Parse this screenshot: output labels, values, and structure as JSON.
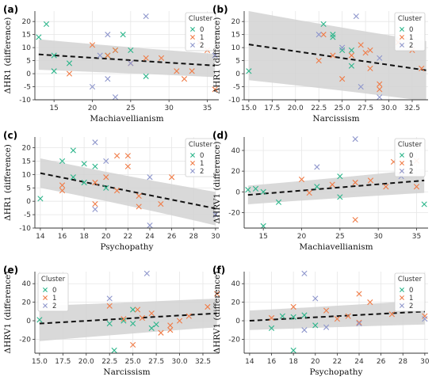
{
  "colors": {
    "cluster_0": "#2bb58a",
    "cluster_1": "#f07b46",
    "cluster_2": "#8e96cc",
    "ci_band": "#d2d2d2",
    "regression_line": "#111111",
    "axis": "#333333",
    "grid": "#e6e6e6"
  },
  "chart_data": [
    {
      "panel_label": "(a)",
      "type": "scatter",
      "xlabel": "Machiavellianism",
      "ylabel": "ΔHR1 (difference)",
      "xlim": [
        12.5,
        36.5
      ],
      "ylim": [
        -10,
        24
      ],
      "xticks": [
        15,
        20,
        25,
        30,
        35
      ],
      "yticks": [
        -10,
        -5,
        0,
        5,
        10,
        15,
        20
      ],
      "legend": {
        "title": "Cluster",
        "entries": [
          "0",
          "1",
          "2"
        ],
        "position": "top-right"
      },
      "regression": {
        "x": [
          13,
          36
        ],
        "y": [
          7.4,
          3.1
        ],
        "ci_lower": [
          1.5,
          -1.3
        ],
        "ci_upper": [
          13.2,
          7.6
        ]
      },
      "series": [
        {
          "name": "0",
          "points": [
            [
              13,
              14
            ],
            [
              14,
              19
            ],
            [
              15,
              1
            ],
            [
              15,
              7
            ],
            [
              17,
              4
            ],
            [
              22,
              7
            ],
            [
              23,
              9
            ],
            [
              24,
              15
            ],
            [
              25,
              9
            ],
            [
              27,
              -1
            ]
          ]
        },
        {
          "name": "1",
          "points": [
            [
              17,
              0
            ],
            [
              20,
              11
            ],
            [
              22,
              7
            ],
            [
              23,
              9
            ],
            [
              25,
              4
            ],
            [
              27,
              6
            ],
            [
              29,
              6
            ],
            [
              31,
              1
            ],
            [
              32,
              -2
            ],
            [
              33,
              1
            ],
            [
              34,
              12
            ],
            [
              35,
              9
            ],
            [
              36,
              -6
            ]
          ]
        },
        {
          "name": "2",
          "points": [
            [
              20,
              -5
            ],
            [
              21,
              7
            ],
            [
              22,
              -2
            ],
            [
              22,
              15
            ],
            [
              23,
              -9
            ],
            [
              25,
              4
            ],
            [
              27,
              22
            ],
            [
              36,
              7
            ]
          ]
        }
      ]
    },
    {
      "panel_label": "(b)",
      "type": "scatter",
      "xlabel": "Narcissism",
      "ylabel": "ΔHR1 (difference)",
      "xlim": [
        14.5,
        34.2
      ],
      "ylim": [
        -10,
        24
      ],
      "xticks": [
        15.0,
        17.5,
        20.0,
        22.5,
        25.0,
        27.5,
        30.0,
        32.5
      ],
      "xtick_labels": [
        "15.0",
        "17.5",
        "20.0",
        "22.5",
        "25.0",
        "27.5",
        "30.0",
        "32.5"
      ],
      "yticks": [
        -10,
        -5,
        0,
        5,
        10,
        15,
        20
      ],
      "legend": {
        "title": "Cluster",
        "entries": [
          "0",
          "1",
          "2"
        ],
        "position": "top-right"
      },
      "regression": {
        "x": [
          15,
          34
        ],
        "y": [
          11.2,
          1.3
        ],
        "ci_lower": [
          -2.5,
          -10.5
        ],
        "ci_upper": [
          24,
          12.5
        ]
      },
      "series": [
        {
          "name": "0",
          "points": [
            [
              15,
              1
            ],
            [
              23,
              19
            ],
            [
              24,
              14
            ],
            [
              24,
              15
            ],
            [
              25,
              9
            ],
            [
              26,
              9
            ],
            [
              26,
              3
            ]
          ]
        },
        {
          "name": "1",
          "points": [
            [
              22.5,
              5
            ],
            [
              23,
              15
            ],
            [
              24,
              7
            ],
            [
              25,
              -2
            ],
            [
              26,
              7
            ],
            [
              27,
              11
            ],
            [
              27.5,
              8
            ],
            [
              28,
              9
            ],
            [
              28,
              2
            ],
            [
              29,
              -6
            ],
            [
              29,
              -4
            ],
            [
              31,
              12
            ],
            [
              32.5,
              9
            ],
            [
              33.5,
              2
            ]
          ]
        },
        {
          "name": "2",
          "points": [
            [
              22.5,
              15
            ],
            [
              25,
              10
            ],
            [
              26.5,
              22
            ],
            [
              27,
              -5
            ],
            [
              29,
              6
            ],
            [
              29,
              -9
            ]
          ]
        }
      ]
    },
    {
      "panel_label": "(c)",
      "type": "scatter",
      "xlabel": "Psychopathy",
      "ylabel": "ΔHR1 (difference)",
      "xlim": [
        13.5,
        30.3
      ],
      "ylim": [
        -10,
        24
      ],
      "xticks": [
        14,
        16,
        18,
        20,
        22,
        24,
        26,
        28,
        30
      ],
      "yticks": [
        -10,
        -5,
        0,
        5,
        10,
        15,
        20
      ],
      "legend": {
        "title": "Cluster",
        "entries": [
          "0",
          "1",
          "2"
        ],
        "position": "top-right"
      },
      "regression": {
        "x": [
          14,
          30
        ],
        "y": [
          10.5,
          -2.7
        ],
        "ci_lower": [
          5,
          -9
        ],
        "ci_upper": [
          16,
          3.5
        ]
      },
      "series": [
        {
          "name": "0",
          "points": [
            [
              14,
              1
            ],
            [
              16,
              15
            ],
            [
              17,
              19
            ],
            [
              17,
              9
            ],
            [
              18,
              14
            ],
            [
              18,
              7
            ],
            [
              19,
              13
            ],
            [
              20,
              5
            ]
          ]
        },
        {
          "name": "1",
          "points": [
            [
              16,
              4
            ],
            [
              16,
              6
            ],
            [
              19,
              -1
            ],
            [
              19,
              7
            ],
            [
              20,
              9
            ],
            [
              21,
              17
            ],
            [
              21,
              4
            ],
            [
              22,
              17
            ],
            [
              22,
              13
            ],
            [
              23,
              2
            ],
            [
              23,
              -2
            ],
            [
              25,
              -1
            ],
            [
              26,
              9
            ]
          ]
        },
        {
          "name": "2",
          "points": [
            [
              19,
              22
            ],
            [
              19,
              -3
            ],
            [
              20,
              15
            ],
            [
              24,
              9
            ],
            [
              24,
              -9
            ],
            [
              30,
              -5
            ]
          ]
        }
      ]
    },
    {
      "panel_label": "(d)",
      "type": "scatter",
      "xlabel": "Machiavellianism",
      "ylabel": "ΔHRV1 (difference)",
      "xlim": [
        12.5,
        36.5
      ],
      "ylim": [
        -35,
        53
      ],
      "xticks": [
        15,
        20,
        25,
        30,
        35
      ],
      "yticks": [
        -20,
        0,
        20,
        40
      ],
      "legend": {
        "title": "Cluster",
        "entries": [
          "0",
          "1",
          "2"
        ],
        "position": "top-right"
      },
      "regression": {
        "x": [
          13,
          36
        ],
        "y": [
          -3,
          11
        ],
        "ci_lower": [
          -12,
          -1
        ],
        "ci_upper": [
          6,
          22
        ]
      },
      "series": [
        {
          "name": "0",
          "points": [
            [
              13,
              2
            ],
            [
              14,
              3
            ],
            [
              15,
              -33
            ],
            [
              15,
              0
            ],
            [
              17,
              -10
            ],
            [
              22,
              5
            ],
            [
              25,
              15
            ],
            [
              25,
              -5
            ],
            [
              36,
              -12
            ]
          ]
        },
        {
          "name": "1",
          "points": [
            [
              20,
              12
            ],
            [
              21,
              -1
            ],
            [
              24,
              7
            ],
            [
              27,
              -27
            ],
            [
              27,
              9
            ],
            [
              29,
              11
            ],
            [
              31,
              5
            ],
            [
              32,
              29
            ],
            [
              33,
              20
            ],
            [
              35,
              30
            ],
            [
              35,
              5
            ]
          ]
        },
        {
          "name": "2",
          "points": [
            [
              22,
              24
            ],
            [
              27,
              51
            ],
            [
              33,
              15
            ]
          ]
        }
      ]
    },
    {
      "panel_label": "(e)",
      "type": "scatter",
      "xlabel": "Narcissism",
      "ylabel": "ΔHRV1 (difference)",
      "xlim": [
        14.5,
        34.2
      ],
      "ylim": [
        -35,
        53
      ],
      "xticks": [
        15.0,
        17.5,
        20.0,
        22.5,
        25.0,
        27.5,
        30.0,
        32.5
      ],
      "xtick_labels": [
        "15.0",
        "17.5",
        "20.0",
        "22.5",
        "25.0",
        "27.5",
        "30.0",
        "32.5"
      ],
      "yticks": [
        -20,
        0,
        20,
        40
      ],
      "legend": {
        "title": "Cluster",
        "entries": [
          "0",
          "1",
          "2"
        ],
        "position": "top-left"
      },
      "regression": {
        "x": [
          15,
          34
        ],
        "y": [
          -3,
          8
        ],
        "ci_lower": [
          -22,
          -7
        ],
        "ci_upper": [
          16,
          24
        ]
      },
      "series": [
        {
          "name": "0",
          "points": [
            [
              15,
              1
            ],
            [
              22.5,
              -3
            ],
            [
              23,
              -32
            ],
            [
              24,
              0
            ],
            [
              25,
              12
            ],
            [
              25,
              -3
            ],
            [
              27,
              -8
            ],
            [
              27.5,
              -4
            ]
          ]
        },
        {
          "name": "1",
          "points": [
            [
              22.5,
              16
            ],
            [
              24,
              2
            ],
            [
              25,
              -26
            ],
            [
              25.5,
              12
            ],
            [
              26,
              3
            ],
            [
              27,
              8
            ],
            [
              28,
              -13
            ],
            [
              29,
              -10
            ],
            [
              29,
              -5
            ],
            [
              30,
              0
            ],
            [
              31,
              5
            ],
            [
              33,
              15
            ],
            [
              34,
              29
            ]
          ]
        },
        {
          "name": "2",
          "points": [
            [
              22.5,
              24
            ],
            [
              26.5,
              51
            ]
          ]
        }
      ]
    },
    {
      "panel_label": "(f)",
      "type": "scatter",
      "xlabel": "Psychopathy",
      "ylabel": "ΔHRV1 (difference)",
      "xlim": [
        13.5,
        30.3
      ],
      "ylim": [
        -35,
        53
      ],
      "xticks": [
        14,
        16,
        18,
        20,
        22,
        24,
        26,
        28,
        30
      ],
      "yticks": [
        -20,
        0,
        20,
        40
      ],
      "legend": {
        "title": "Cluster",
        "entries": [
          "0",
          "1",
          "2"
        ],
        "position": "top-right"
      },
      "regression": {
        "x": [
          14,
          30
        ],
        "y": [
          0,
          10
        ],
        "ci_lower": [
          -10,
          -4
        ],
        "ci_upper": [
          11,
          22
        ]
      },
      "series": [
        {
          "name": "0",
          "points": [
            [
              16,
              -8
            ],
            [
              17,
              5
            ],
            [
              18,
              -32
            ],
            [
              18,
              4
            ],
            [
              19,
              6
            ],
            [
              20,
              -5
            ]
          ]
        },
        {
          "name": "1",
          "points": [
            [
              16,
              3
            ],
            [
              18,
              15
            ],
            [
              21,
              11
            ],
            [
              22,
              2
            ],
            [
              23,
              5
            ],
            [
              24,
              29
            ],
            [
              24,
              -2
            ],
            [
              25,
              20
            ],
            [
              27,
              7
            ],
            [
              30,
              5
            ]
          ]
        },
        {
          "name": "2",
          "points": [
            [
              19,
              51
            ],
            [
              19,
              -10
            ],
            [
              20,
              24
            ],
            [
              21,
              -7
            ],
            [
              24,
              -3
            ],
            [
              30,
              2
            ]
          ]
        }
      ]
    }
  ]
}
